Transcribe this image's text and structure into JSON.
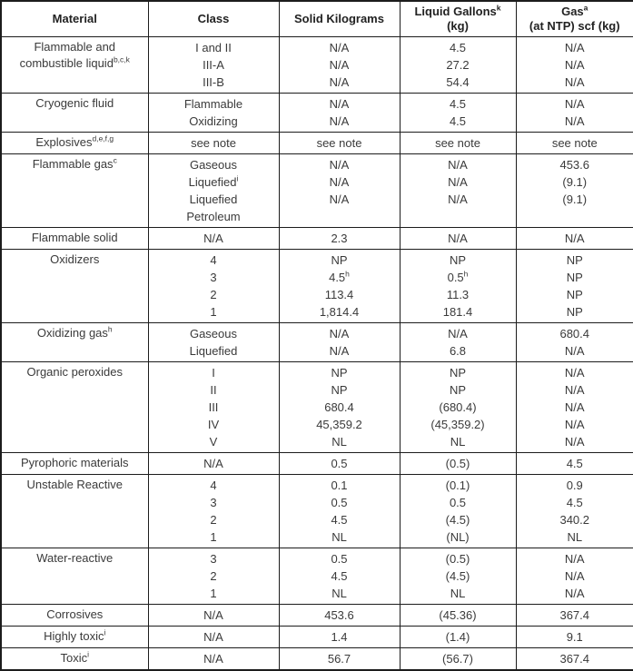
{
  "table": {
    "title": "Hazardous materials quantity limits table",
    "columns": [
      {
        "line1": "Material",
        "line2": ""
      },
      {
        "line1": "Class",
        "line2": ""
      },
      {
        "line1": "Solid Kilograms",
        "line2": ""
      },
      {
        "line1": "Liquid Gallons^{k}",
        "line2": "(kg)"
      },
      {
        "line1": "Gas^{a}",
        "line2": "(at NTP) scf (kg)"
      }
    ],
    "groups": [
      {
        "material": "Flammable and combustible liquid^{b,c,k}",
        "class_lines": [
          "I and II",
          "III-A",
          "III-B"
        ],
        "solid": [
          "N/A",
          "N/A",
          "N/A"
        ],
        "liquid": [
          "4.5",
          "27.2",
          "54.4"
        ],
        "gas": [
          "N/A",
          "N/A",
          "N/A"
        ]
      },
      {
        "material": "Cryogenic fluid",
        "class_lines": [
          "Flammable",
          "Oxidizing"
        ],
        "solid": [
          "N/A",
          "N/A"
        ],
        "liquid": [
          "4.5",
          "4.5"
        ],
        "gas": [
          "N/A",
          "N/A"
        ]
      },
      {
        "material": "Explosives^{d,e,f,g}",
        "class_lines": [
          "see note"
        ],
        "solid": [
          "see note"
        ],
        "liquid": [
          "see note"
        ],
        "gas": [
          "see note"
        ]
      },
      {
        "material": "Flammable gas^{c}",
        "class_lines": [
          "Gaseous",
          "Liquefied^{i}",
          "Liquefied\nPetroleum"
        ],
        "solid": [
          "N/A",
          "N/A",
          "N/A"
        ],
        "liquid": [
          "N/A",
          "N/A",
          "N/A"
        ],
        "gas": [
          "453.6",
          "(9.1)",
          "(9.1)"
        ]
      },
      {
        "material": "Flammable solid",
        "class_lines": [
          "N/A"
        ],
        "solid": [
          "2.3"
        ],
        "liquid": [
          "N/A"
        ],
        "gas": [
          "N/A"
        ]
      },
      {
        "material": "Oxidizers",
        "class_lines": [
          "4",
          "3",
          "2",
          "1"
        ],
        "solid": [
          "NP",
          "4.5^{h}",
          "113.4",
          "1,814.4"
        ],
        "liquid": [
          "NP",
          "0.5^{h}",
          "11.3",
          "181.4"
        ],
        "gas": [
          "NP",
          "NP",
          "NP",
          "NP"
        ]
      },
      {
        "material": "Oxidizing gas^{h}",
        "class_lines": [
          "Gaseous",
          "Liquefied"
        ],
        "solid": [
          "N/A",
          "N/A"
        ],
        "liquid": [
          "N/A",
          "6.8"
        ],
        "gas": [
          "680.4",
          "N/A"
        ]
      },
      {
        "material": "Organic peroxides",
        "class_lines": [
          "I",
          "II",
          "III",
          "IV",
          "V"
        ],
        "solid": [
          "NP",
          "NP",
          "680.4",
          "45,359.2",
          "NL"
        ],
        "liquid": [
          "NP",
          "NP",
          "(680.4)",
          "(45,359.2)",
          "NL"
        ],
        "gas": [
          "N/A",
          "N/A",
          "N/A",
          "N/A",
          "N/A"
        ]
      },
      {
        "material": "Pyrophoric materials",
        "class_lines": [
          "N/A"
        ],
        "solid": [
          "0.5"
        ],
        "liquid": [
          "(0.5)"
        ],
        "gas": [
          "4.5"
        ]
      },
      {
        "material": "Unstable Reactive",
        "class_lines": [
          "4",
          "3",
          "2",
          "1"
        ],
        "solid": [
          "0.1",
          "0.5",
          "4.5",
          "NL"
        ],
        "liquid": [
          "(0.1)",
          "0.5",
          "(4.5)",
          "(NL)"
        ],
        "gas": [
          "0.9",
          "4.5",
          "340.2",
          "NL"
        ]
      },
      {
        "material": "Water-reactive",
        "class_lines": [
          "3",
          "2",
          "1"
        ],
        "solid": [
          "0.5",
          "4.5",
          "NL"
        ],
        "liquid": [
          "(0.5)",
          "(4.5)",
          "NL"
        ],
        "gas": [
          "N/A",
          "N/A",
          "N/A"
        ]
      },
      {
        "material": "Corrosives",
        "class_lines": [
          "N/A"
        ],
        "solid": [
          "453.6"
        ],
        "liquid": [
          "(45.36)"
        ],
        "gas": [
          "367.4"
        ]
      },
      {
        "material": "Highly toxic^{i}",
        "class_lines": [
          "N/A"
        ],
        "solid": [
          "1.4"
        ],
        "liquid": [
          "(1.4)"
        ],
        "gas": [
          "9.1"
        ]
      },
      {
        "material": "Toxic^{i}",
        "class_lines": [
          "N/A"
        ],
        "solid": [
          "56.7"
        ],
        "liquid": [
          "(56.7)"
        ],
        "gas": [
          "367.4"
        ]
      }
    ],
    "colors": {
      "border": "#1c1c1c",
      "body_text": "#3a3a3a",
      "header_text": "#222222",
      "background": "#ffffff"
    }
  }
}
